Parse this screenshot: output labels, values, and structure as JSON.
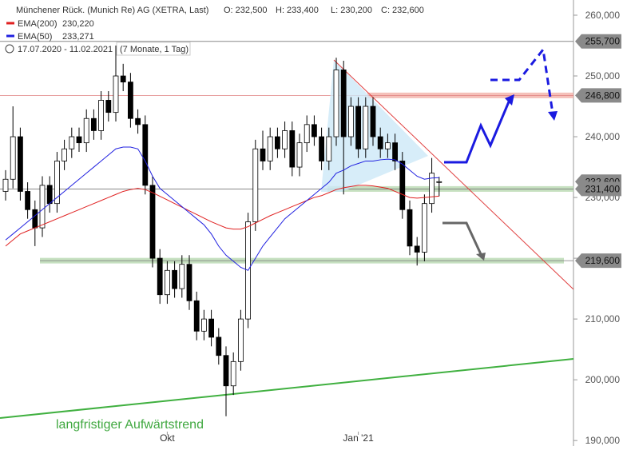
{
  "chart_data": {
    "type": "candlestick",
    "title": "Münchener Rück. (Munich Re) AG (XETRA, Last)",
    "ohlc_text": [
      "O: 232,500",
      "H: 233,400",
      "L: 230,200",
      "C: 232,600"
    ],
    "period": "17.07.2020 - 11.02.2021",
    "period_note": "(7 Monate, 1 Tag)",
    "annotation": "langfristiger Aufwärtstrend",
    "categories": [
      null,
      null,
      null,
      null,
      null,
      null,
      null,
      null,
      null,
      null,
      null,
      null,
      null,
      null,
      null,
      null,
      null,
      null,
      null,
      null,
      null,
      null,
      "Okt",
      null,
      null,
      null,
      null,
      null,
      null,
      null,
      null,
      null,
      null,
      null,
      null,
      null,
      null,
      null,
      null,
      null,
      null,
      null,
      null,
      null,
      null,
      null,
      null,
      null,
      "Jan '21",
      null,
      null,
      null,
      null,
      null,
      null,
      null,
      null,
      null,
      null,
      null
    ],
    "open": [
      231,
      233,
      240,
      231,
      228,
      225,
      232,
      229,
      236,
      238,
      240,
      239,
      243,
      241,
      246,
      244,
      250,
      249,
      243,
      242,
      232,
      220,
      214,
      218,
      215,
      219,
      213,
      208,
      210,
      207,
      204,
      199,
      203,
      210,
      226,
      238,
      236,
      240,
      238,
      241,
      235,
      239,
      242,
      240,
      236,
      240,
      251,
      240,
      245,
      238,
      245,
      240,
      238,
      239,
      236,
      228,
      222,
      221,
      229,
      232.5
    ],
    "high": [
      234.5,
      245,
      241.5,
      232.5,
      229.5,
      233.5,
      233.5,
      237.5,
      239.5,
      241.5,
      241.5,
      244.5,
      244.5,
      247.5,
      247.5,
      255,
      252,
      250.5,
      244.5,
      243.5,
      233.5,
      221.5,
      219.5,
      219.5,
      220.5,
      220.5,
      214.5,
      211.5,
      211.5,
      208.5,
      205.5,
      204.5,
      211.5,
      227.5,
      239.5,
      241,
      241.5,
      241.5,
      242.5,
      242.5,
      240.5,
      243.5,
      243.5,
      241.5,
      241.5,
      253,
      252.5,
      246.5,
      246.5,
      246.5,
      246.5,
      241.5,
      240.5,
      240.5,
      237.5,
      229.5,
      223.5,
      230.5,
      236.5,
      233.4
    ],
    "low": [
      229.5,
      231.5,
      229.5,
      226.5,
      222,
      223.5,
      227.5,
      227.5,
      234.5,
      236.5,
      237.5,
      237.5,
      239.5,
      239.5,
      242.5,
      242.5,
      247.5,
      241.5,
      240.5,
      230.5,
      218.5,
      212.5,
      212.5,
      213.5,
      213.5,
      211.5,
      206.5,
      206.5,
      205.5,
      202.5,
      194,
      197.5,
      201.5,
      208.5,
      224.5,
      234.5,
      234.5,
      236.5,
      236.5,
      233.5,
      233.5,
      237.5,
      238.5,
      234.5,
      234.5,
      238.5,
      230.5,
      238.5,
      236.5,
      236.5,
      238.5,
      236.5,
      236.5,
      234.5,
      226.5,
      220.5,
      218.8,
      219.5,
      227.5,
      230.2
    ],
    "close": [
      233,
      240,
      231,
      228,
      225,
      232,
      229,
      236,
      238,
      240,
      239,
      243,
      241,
      246,
      244,
      250,
      249,
      243,
      242,
      232,
      220,
      214,
      218,
      215,
      219,
      213,
      208,
      210,
      207,
      204,
      199,
      203,
      210,
      226,
      238,
      236,
      240,
      238,
      241,
      235,
      239,
      242,
      240,
      236,
      240,
      251,
      240,
      245,
      238,
      245,
      240,
      238,
      239,
      236,
      228,
      222,
      221,
      229,
      234,
      232.6
    ],
    "series": [
      {
        "name": "EMA(200)",
        "last_label": "230,220",
        "color": "#e02020",
        "values": [
          222,
          223,
          224,
          224.5,
          225,
          225.5,
          226,
          226.5,
          227,
          227.5,
          228,
          228.5,
          229,
          229.5,
          230,
          230.5,
          231,
          231.3,
          231.5,
          231.3,
          230.8,
          230.2,
          229.6,
          229,
          228.4,
          227.8,
          227.2,
          226.6,
          226,
          225.5,
          225,
          224.8,
          224.8,
          225.2,
          225.8,
          226.4,
          227,
          227.5,
          228,
          228.5,
          229,
          229.5,
          230,
          230.3,
          230.8,
          231.3,
          231.6,
          231.8,
          232,
          232,
          231.9,
          231.7,
          231.5,
          231,
          230.5,
          230,
          229.9,
          230,
          230.1,
          230.22
        ]
      },
      {
        "name": "EMA(50)",
        "last_label": "233,271",
        "color": "#2020e0",
        "values": [
          223,
          224,
          225,
          226,
          227,
          228,
          229,
          230,
          231,
          232,
          233,
          234,
          235,
          236,
          237,
          238,
          238.3,
          238.3,
          238,
          236,
          233.5,
          231.5,
          230.5,
          229.5,
          228.5,
          227.5,
          226.5,
          225.5,
          224,
          222,
          220.5,
          219.5,
          218.5,
          218,
          220,
          222,
          223.5,
          225,
          226.5,
          227.5,
          228.5,
          229.5,
          230.5,
          231.5,
          232.5,
          234,
          234.5,
          235.2,
          235.6,
          236,
          236,
          236.2,
          236.3,
          236.2,
          235.5,
          234.5,
          233.5,
          233,
          233.2,
          233.271
        ]
      }
    ],
    "levels": [
      {
        "value": 255.7,
        "label": "255,700",
        "color": "#888888"
      },
      {
        "value": 246.8,
        "label": "246,800",
        "color": "#f2b0a8"
      },
      {
        "value": 231.4,
        "label": "231,400",
        "color": "#b8d8b0"
      },
      {
        "value": 219.6,
        "label": "219,600",
        "color": "#b8d8b0"
      }
    ],
    "last_price": {
      "value": 232.6,
      "label": "232,600"
    },
    "ylim": [
      189.1,
      262.5
    ],
    "yticks": [
      {
        "value": 190,
        "label": "190,000"
      },
      {
        "value": 200,
        "label": "200,000"
      },
      {
        "value": 210,
        "label": "210,000"
      },
      {
        "value": 220,
        "label": "220,000"
      },
      {
        "value": 230,
        "label": "230,000"
      },
      {
        "value": 240,
        "label": "240,000"
      },
      {
        "value": 250,
        "label": "250,000"
      },
      {
        "value": 260,
        "label": "260,000"
      }
    ]
  }
}
